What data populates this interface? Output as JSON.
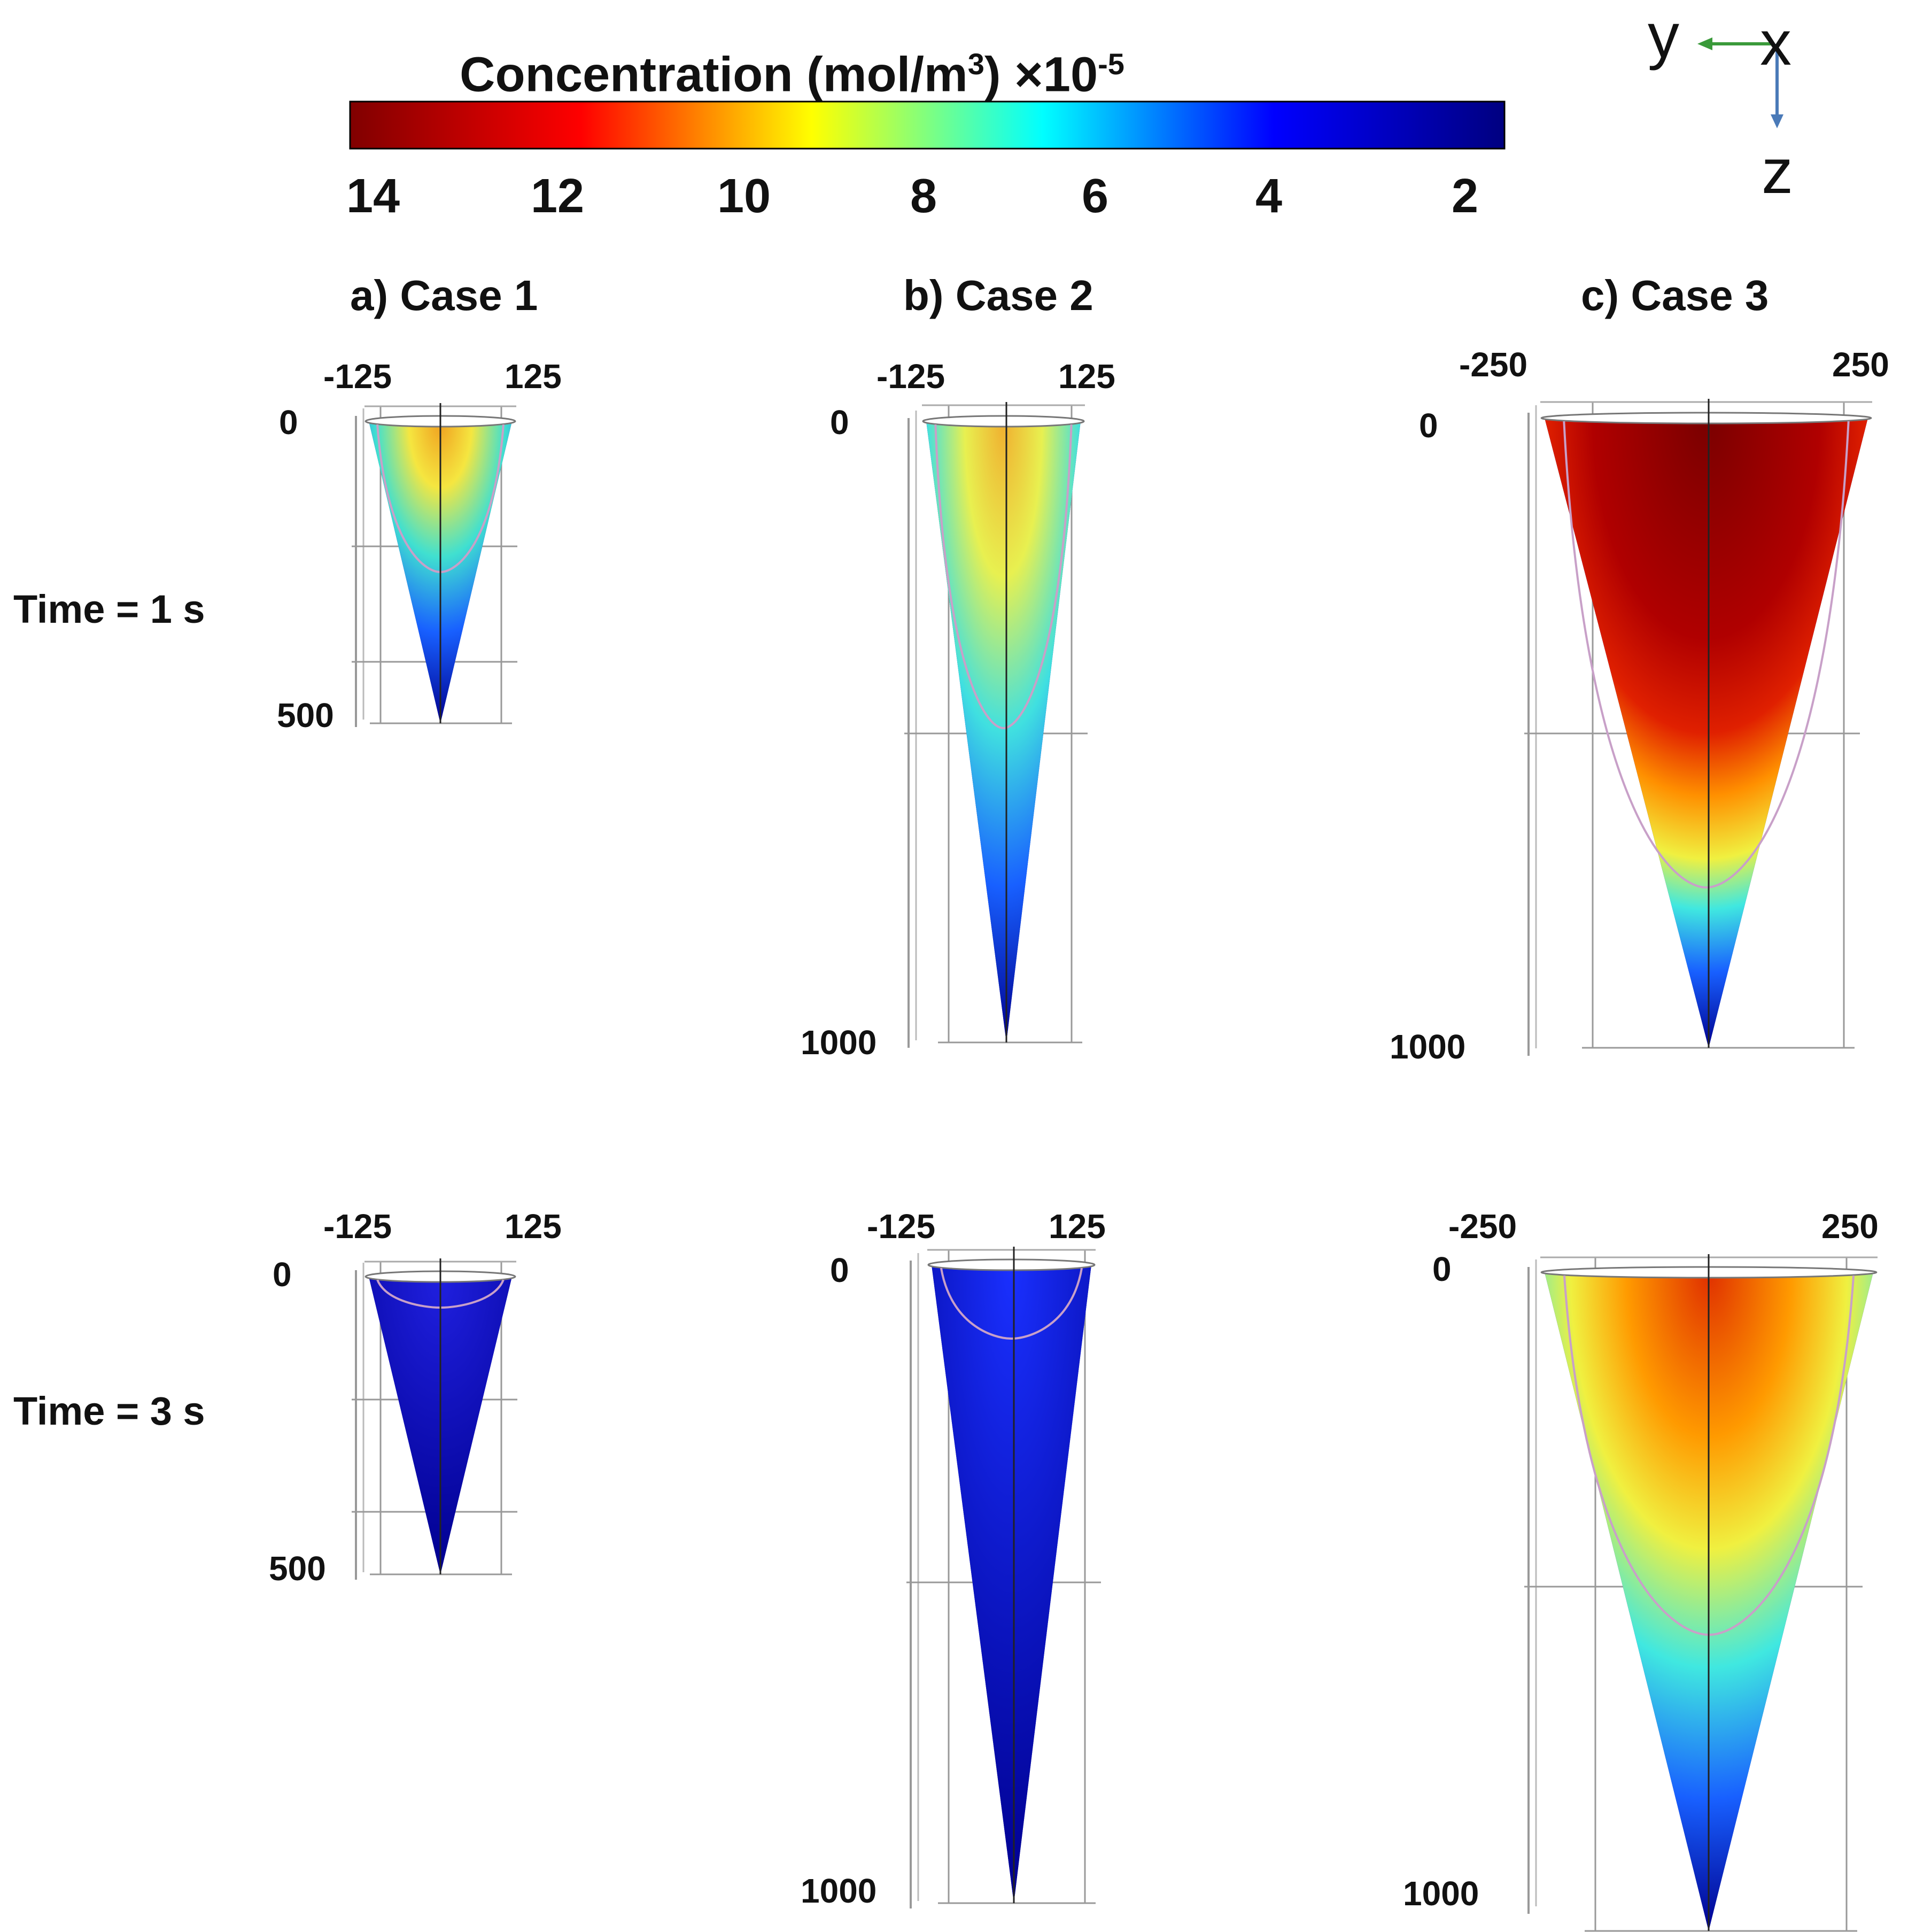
{
  "colorbar": {
    "title": "Concentration (mol/m",
    "unit_superscript": "3",
    "close_paren": ")",
    "multiplier": " ×10",
    "multiplier_exp": "-5",
    "ticks": [
      "14",
      "12",
      "10",
      "8",
      "6",
      "4",
      "2"
    ],
    "colormap": [
      "#800000",
      "#ff0000",
      "#ffff00",
      "#00ffff",
      "#0000ff",
      "#000080"
    ],
    "range": [
      14,
      1.5
    ]
  },
  "axis_triad": {
    "y": "y",
    "x": "x",
    "z": "z"
  },
  "columns": [
    {
      "title": "a) Case 1",
      "y_min": "-125",
      "y_max": "125",
      "z_top": "0",
      "z_bottom": "500"
    },
    {
      "title": "b) Case 2",
      "y_min": "-125",
      "y_max": "125",
      "z_top": "0",
      "z_bottom": "1000"
    },
    {
      "title": "c) Case 3",
      "y_min": "-250",
      "y_max": "250",
      "z_top": "0",
      "z_bottom": "1000"
    }
  ],
  "rows": [
    {
      "label": "Time = 1 s"
    },
    {
      "label": "Time = 3 s"
    }
  ],
  "colors": {
    "cone_base": "#00008f",
    "contour": "#c8a0c8",
    "grid": "#999999"
  }
}
